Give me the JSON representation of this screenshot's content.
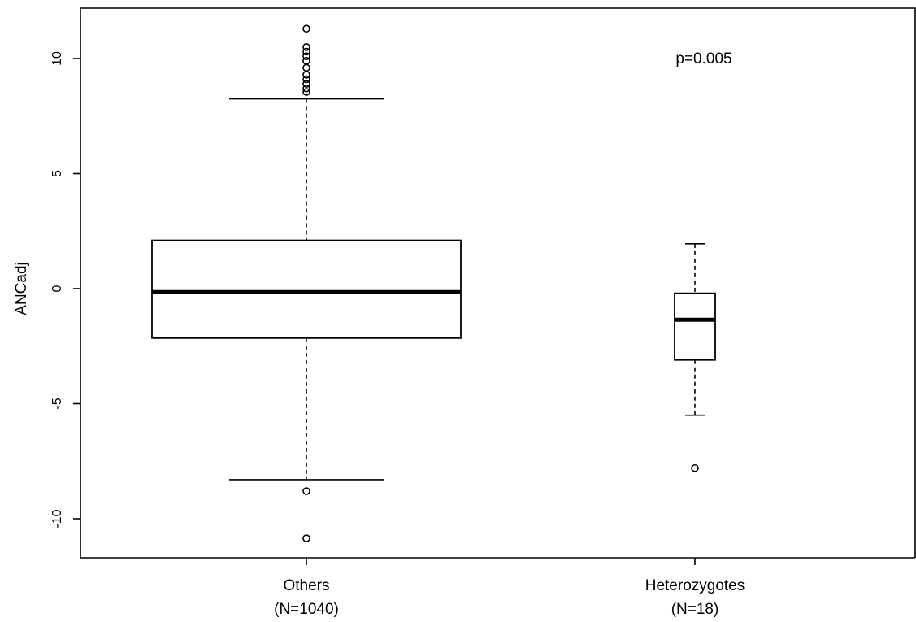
{
  "chart_data": {
    "type": "boxplot",
    "ylabel": "ANCadj",
    "ylim": [
      -11.7,
      12.2
    ],
    "y_ticks": [
      -10,
      -5,
      0,
      5,
      10
    ],
    "y_tick_labels": [
      "-10",
      "-5",
      "0",
      "5",
      "10"
    ],
    "grid": false,
    "annotation": "p=0.005",
    "groups": [
      {
        "label_line1": "Others",
        "label_line2": "(N=1040)",
        "whisker_low": -8.3,
        "q1": -2.15,
        "median": -0.15,
        "q3": 2.1,
        "whisker_high": 8.25,
        "outliers": [
          11.3,
          10.5,
          10.3,
          10.1,
          9.9,
          9.6,
          9.3,
          9.1,
          8.9,
          8.7,
          8.55,
          -8.8,
          -10.85
        ]
      },
      {
        "label_line1": "Heterozygotes",
        "label_line2": "(N=18)",
        "whisker_low": -5.5,
        "q1": -3.1,
        "median": -1.35,
        "q3": -0.2,
        "whisker_high": 1.95,
        "outliers": [
          -7.8
        ]
      }
    ]
  }
}
